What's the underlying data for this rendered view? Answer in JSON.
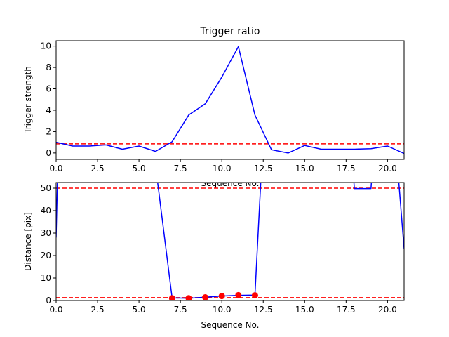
{
  "chart_data": [
    {
      "type": "line",
      "title": "Trigger ratio",
      "xlabel": "Sequence No.",
      "ylabel": "Trigger strength",
      "xlim": [
        0,
        21
      ],
      "ylim": [
        -0.6,
        10.5
      ],
      "xticks": [
        "0.0",
        "2.5",
        "5.0",
        "7.5",
        "10.0",
        "12.5",
        "15.0",
        "17.5",
        "20.0"
      ],
      "xtick_values": [
        0,
        2.5,
        5,
        7.5,
        10,
        12.5,
        15,
        17.5,
        20
      ],
      "yticks": [
        "0",
        "2",
        "4",
        "6",
        "8",
        "10"
      ],
      "ytick_values": [
        0,
        2,
        4,
        6,
        8,
        10
      ],
      "series": [
        {
          "color": "#0000ff",
          "x": [
            0,
            1,
            2,
            3,
            4,
            5,
            6,
            7,
            8,
            9,
            10,
            11,
            12,
            13,
            14,
            15,
            16,
            17,
            18,
            19,
            20,
            21
          ],
          "y": [
            1.0,
            0.65,
            0.65,
            0.75,
            0.35,
            0.65,
            0.15,
            1.05,
            3.55,
            4.6,
            7.1,
            9.95,
            3.55,
            0.3,
            0.0,
            0.7,
            0.35,
            0.35,
            0.35,
            0.4,
            0.65,
            -0.05
          ]
        }
      ],
      "hlines": [
        {
          "y": 0.85,
          "color": "#ff0000",
          "style": "dashed"
        }
      ],
      "grid": false
    },
    {
      "type": "line",
      "title": "",
      "xlabel": "Sequence No.",
      "ylabel": "Distance [pix]",
      "xlim": [
        0,
        21
      ],
      "ylim": [
        0,
        52.5
      ],
      "xticks": [
        "0.0",
        "2.5",
        "5.0",
        "7.5",
        "10.0",
        "12.5",
        "15.0",
        "17.5",
        "20.0"
      ],
      "xtick_values": [
        0,
        2.5,
        5,
        7.5,
        10,
        12.5,
        15,
        17.5,
        20
      ],
      "yticks": [
        "0",
        "10",
        "20",
        "30",
        "40",
        "50"
      ],
      "ytick_values": [
        0,
        10,
        20,
        30,
        40,
        50
      ],
      "series": [
        {
          "color": "#0000ff",
          "x": [
            0,
            0.1,
            6,
            7,
            8,
            9,
            10,
            11,
            12,
            12.4,
            17.9,
            18,
            19,
            19.1,
            20.6,
            21
          ],
          "y": [
            28,
            60,
            60,
            1.2,
            1.0,
            1.5,
            2.0,
            2.3,
            2.4,
            60,
            60,
            49.8,
            49.8,
            60,
            60,
            23
          ]
        }
      ],
      "markers": {
        "color": "#ff0000",
        "x": [
          7,
          8,
          9,
          10,
          11,
          12
        ],
        "y": [
          1.0,
          1.0,
          1.4,
          2.0,
          2.4,
          2.3
        ]
      },
      "hlines": [
        {
          "y": 50,
          "color": "#ff0000",
          "style": "dashed"
        },
        {
          "y": 1.3,
          "color": "#ff0000",
          "style": "dashed"
        }
      ],
      "grid": false
    }
  ]
}
